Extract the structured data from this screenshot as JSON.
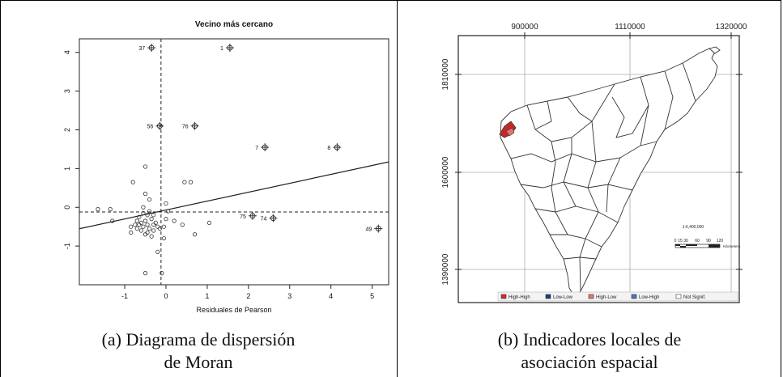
{
  "panel_a": {
    "caption_line1": "(a) Diagrama de dispersión",
    "caption_line2": "de Moran",
    "chart_data": {
      "type": "scatter",
      "title": "Vecino más cercano",
      "xlabel": "Residuales de Pearson",
      "ylabel": "",
      "xlim": [
        -2.1,
        5.4
      ],
      "ylim": [
        -2.0,
        4.35
      ],
      "xticks": [
        -1,
        0,
        1,
        2,
        3,
        4,
        5
      ],
      "yticks": [
        -1,
        0,
        1,
        2,
        3,
        4
      ],
      "x_mean": -0.12,
      "y_mean": -0.12,
      "regression": {
        "slope": 0.23,
        "intercept": -0.07
      },
      "influential_points": [
        {
          "label": "37",
          "x": -0.35,
          "y": 4.12
        },
        {
          "label": "1",
          "x": 1.55,
          "y": 4.12
        },
        {
          "label": "56",
          "x": -0.15,
          "y": 2.1
        },
        {
          "label": "76",
          "x": 0.7,
          "y": 2.1
        },
        {
          "label": "7",
          "x": 2.4,
          "y": 1.55
        },
        {
          "label": "8",
          "x": 4.15,
          "y": 1.55
        },
        {
          "label": "75",
          "x": 2.1,
          "y": -0.22
        },
        {
          "label": "74",
          "x": 2.6,
          "y": -0.28
        },
        {
          "label": "49",
          "x": 5.15,
          "y": -0.55
        }
      ],
      "points": [
        {
          "x": -1.65,
          "y": -0.05
        },
        {
          "x": -1.35,
          "y": -0.05
        },
        {
          "x": -1.3,
          "y": -0.35
        },
        {
          "x": -0.85,
          "y": -0.65
        },
        {
          "x": -0.7,
          "y": -0.55
        },
        {
          "x": -0.8,
          "y": 0.65
        },
        {
          "x": -0.5,
          "y": 1.05
        },
        {
          "x": -0.5,
          "y": 0.35
        },
        {
          "x": -0.55,
          "y": -0.15
        },
        {
          "x": -0.5,
          "y": -0.35
        },
        {
          "x": -0.45,
          "y": -0.45
        },
        {
          "x": -0.4,
          "y": -0.55
        },
        {
          "x": -0.35,
          "y": -0.3
        },
        {
          "x": -0.3,
          "y": -0.6
        },
        {
          "x": -0.6,
          "y": -0.4
        },
        {
          "x": -0.65,
          "y": -0.25
        },
        {
          "x": -0.55,
          "y": 0.0
        },
        {
          "x": -0.7,
          "y": -0.35
        },
        {
          "x": -0.45,
          "y": -0.2
        },
        {
          "x": -0.4,
          "y": -0.1
        },
        {
          "x": -0.3,
          "y": -0.2
        },
        {
          "x": -0.25,
          "y": -0.4
        },
        {
          "x": -0.2,
          "y": -0.5
        },
        {
          "x": -0.5,
          "y": -0.7
        },
        {
          "x": -0.35,
          "y": -0.75
        },
        {
          "x": -0.6,
          "y": -0.6
        },
        {
          "x": -0.55,
          "y": -0.5
        },
        {
          "x": -0.45,
          "y": -0.65
        },
        {
          "x": -0.3,
          "y": -0.45
        },
        {
          "x": -0.65,
          "y": -0.45
        },
        {
          "x": -0.75,
          "y": -0.45
        },
        {
          "x": -0.4,
          "y": 0.2
        },
        {
          "x": -0.5,
          "y": -1.7
        },
        {
          "x": -0.1,
          "y": -1.7
        },
        {
          "x": -0.2,
          "y": -1.15
        },
        {
          "x": -0.05,
          "y": -0.8
        },
        {
          "x": -0.05,
          "y": -0.5
        },
        {
          "x": 0.0,
          "y": -0.3
        },
        {
          "x": 0.05,
          "y": -0.1
        },
        {
          "x": 0.0,
          "y": 0.1
        },
        {
          "x": 0.45,
          "y": 0.65
        },
        {
          "x": 0.6,
          "y": 0.65
        },
        {
          "x": 0.4,
          "y": -0.45
        },
        {
          "x": 0.7,
          "y": -0.7
        },
        {
          "x": 1.05,
          "y": -0.4
        },
        {
          "x": 0.2,
          "y": -0.35
        },
        {
          "x": -0.15,
          "y": -0.55
        },
        {
          "x": -0.85,
          "y": -0.5
        }
      ]
    }
  },
  "panel_b": {
    "caption_line1": "(b) Indicadores locales de",
    "caption_line2": "asociación espacial",
    "x_ticks": [
      "900000",
      "1110000",
      "1320000"
    ],
    "y_ticks": [
      "1810000",
      "1600000",
      "1390000"
    ],
    "scale_label": "1:6,400,000",
    "scale_ticks": [
      "0",
      "15",
      "30",
      "60",
      "90",
      "120"
    ],
    "scale_unit": "Kilometers",
    "legend": [
      {
        "label": "High-High",
        "color": "#d32f2f"
      },
      {
        "label": "Low-Low",
        "color": "#1f3f7a"
      },
      {
        "label": "High-Low",
        "color": "#e57373"
      },
      {
        "label": "Low-High",
        "color": "#4a78c2"
      },
      {
        "label": "Not Signif.",
        "color": "#ffffff"
      }
    ]
  }
}
